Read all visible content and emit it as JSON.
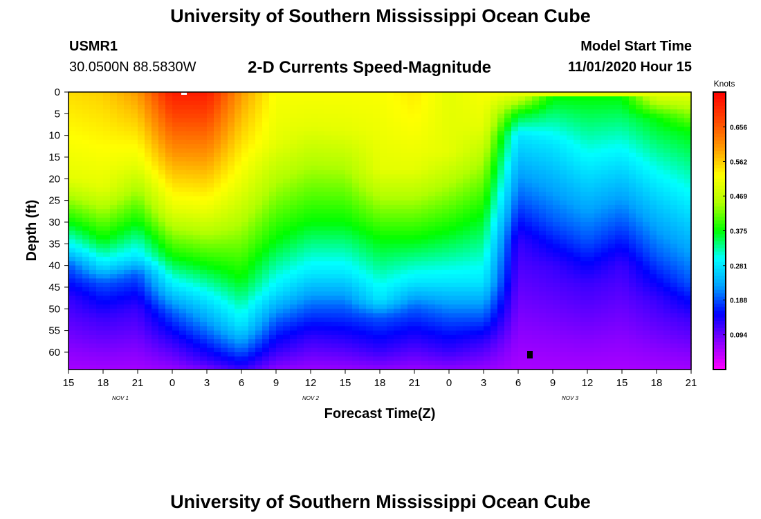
{
  "page": {
    "title": "University of Southern Mississippi Ocean Cube",
    "footer_title": "University of Southern Mississippi Ocean Cube",
    "station_id": "USMR1",
    "coordinates": "30.0500N 88.5830W",
    "chart_heading": "2-D Currents Speed-Magnitude",
    "model_start_label": "Model Start Time",
    "model_start_value": "11/01/2020 Hour 15"
  },
  "chart_data": {
    "type": "heatmap",
    "title": "2-D Currents Speed-Magnitude",
    "xlabel": "Forecast Time(Z)",
    "ylabel": "Depth (ft)",
    "x_ticks": [
      "15",
      "18",
      "21",
      "0",
      "3",
      "6",
      "9",
      "12",
      "15",
      "18",
      "21",
      "0",
      "3",
      "6",
      "9",
      "12",
      "15",
      "18",
      "21"
    ],
    "x_hours": [
      0,
      3,
      6,
      9,
      12,
      15,
      18,
      21,
      24,
      27,
      30,
      33,
      36,
      39,
      42,
      45,
      48,
      51,
      54
    ],
    "xlim": [
      0,
      54
    ],
    "date_labels": [
      {
        "label": "NOV 1",
        "hour": 4.5
      },
      {
        "label": "NOV 2",
        "hour": 21
      },
      {
        "label": "NOV 3",
        "hour": 43.5
      }
    ],
    "y_ticks": [
      0,
      5,
      10,
      15,
      20,
      25,
      30,
      35,
      40,
      45,
      50,
      55,
      60
    ],
    "ylim": [
      0,
      64
    ],
    "colorbar": {
      "unit": "Knots",
      "ticks": [
        0.656,
        0.562,
        0.469,
        0.375,
        0.281,
        0.188,
        0.094
      ],
      "range": [
        0.0,
        0.75
      ],
      "colors": [
        "#ff00ff",
        "#8a00ff",
        "#0000ff",
        "#00a0ff",
        "#00ffff",
        "#00ff00",
        "#b0ff00",
        "#ffff00",
        "#ff9900",
        "#ff4400",
        "#ff0000"
      ]
    },
    "surface_speed_knots": [
      0.55,
      0.56,
      0.6,
      0.72,
      0.72,
      0.6,
      0.52,
      0.46,
      0.44,
      0.52,
      0.54,
      0.5,
      0.44,
      0.34,
      0.3,
      0.36,
      0.36,
      0.38,
      0.38
    ],
    "contour_depths_ft": {
      "0.5": [
        20,
        22,
        17,
        27,
        28,
        22,
        12,
        8,
        9,
        18,
        18,
        14,
        8,
        0,
        0,
        0,
        0,
        0,
        0
      ],
      "0.375": [
        30,
        34,
        30,
        38,
        40,
        43,
        34,
        30,
        30,
        34,
        34,
        32,
        28,
        5,
        0,
        0,
        1,
        6,
        9
      ],
      "0.28": [
        36,
        40,
        38,
        45,
        48,
        54,
        46,
        42,
        42,
        48,
        44,
        44,
        44,
        10,
        12,
        18,
        16,
        22,
        27
      ],
      "0.19": [
        40,
        44,
        42,
        51,
        56,
        60,
        53,
        50,
        50,
        52,
        50,
        52,
        52,
        25,
        30,
        34,
        30,
        38,
        44
      ],
      "0.12": [
        48,
        52,
        50,
        58,
        62,
        64,
        60,
        57,
        58,
        60,
        58,
        60,
        58,
        35,
        40,
        44,
        40,
        48,
        52
      ]
    }
  }
}
